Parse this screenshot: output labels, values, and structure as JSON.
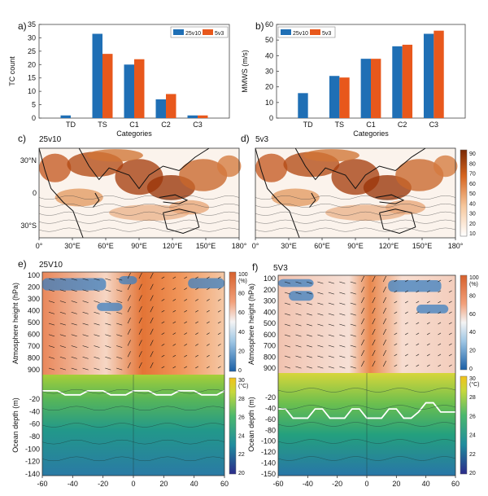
{
  "chart_data": [
    {
      "panel": "a)",
      "type": "bar",
      "categories": [
        "TD",
        "TS",
        "C1",
        "C2",
        "C3"
      ],
      "series": [
        {
          "name": "25v10",
          "values": [
            1,
            31.5,
            20,
            7,
            1
          ],
          "color": "#1f6fb5"
        },
        {
          "name": "5v3",
          "values": [
            0,
            24,
            22,
            9,
            1
          ],
          "color": "#e8581c"
        }
      ],
      "xlabel": "Categories",
      "ylabel": "TC count",
      "ylim": [
        0,
        35
      ],
      "yticks": [
        "0",
        "5",
        "10",
        "15",
        "20",
        "25",
        "30",
        "35"
      ],
      "legend": "top-right"
    },
    {
      "panel": "b)",
      "type": "bar",
      "categories": [
        "TD",
        "TS",
        "C1",
        "C2",
        "C3"
      ],
      "series": [
        {
          "name": "25v10",
          "values": [
            16,
            27,
            38,
            46,
            54
          ],
          "color": "#1f6fb5"
        },
        {
          "name": "5v3",
          "values": [
            0,
            26,
            38,
            47,
            56
          ],
          "color": "#e8581c"
        }
      ],
      "xlabel": "Categories",
      "ylabel": "MMWS (m/s)",
      "ylim": [
        0,
        60
      ],
      "yticks": [
        "0",
        "10",
        "20",
        "30",
        "40",
        "50",
        "60"
      ],
      "legend": "top-left"
    },
    {
      "panel": "c)",
      "type": "heatmap",
      "title": "25v10",
      "xticks": [
        "0°",
        "30°E",
        "60°E",
        "90°E",
        "120°E",
        "150°E",
        "180°"
      ],
      "yticks": [
        "30°N",
        "0",
        "30°S"
      ]
    },
    {
      "panel": "d)",
      "type": "heatmap",
      "title": "5v3",
      "xticks": [
        "0°",
        "30°E",
        "60°E",
        "90°E",
        "120°E",
        "150°E",
        "180°"
      ],
      "colorbar_ticks": [
        "90",
        "80",
        "70",
        "60",
        "50",
        "40",
        "30",
        "20",
        "10"
      ]
    },
    {
      "panel": "e)",
      "type": "heatmap",
      "title": "25V10",
      "ylabel_top": "Atmosphere height (hPa)",
      "ylabel_bottom": "Ocean depth (m)",
      "yticks_top": [
        "100",
        "200",
        "300",
        "400",
        "500",
        "600",
        "700",
        "800",
        "900"
      ],
      "yticks_bottom": [
        "-20",
        "-40",
        "-60",
        "-80",
        "-100",
        "-120",
        "-140"
      ],
      "xticks": [
        "-60",
        "-40",
        "-20",
        "0",
        "20",
        "40",
        "60"
      ],
      "colorbar_top": {
        "unit": "(%)",
        "ticks": [
          "100",
          "80",
          "60",
          "40",
          "20",
          "0"
        ]
      },
      "colorbar_bottom": {
        "unit": "(°C)",
        "ticks": [
          "30",
          "28",
          "26",
          "24",
          "22",
          "20"
        ]
      }
    },
    {
      "panel": "f)",
      "type": "heatmap",
      "title": "5V3",
      "ylabel_top": "Atmosphere height (hPa)",
      "ylabel_bottom": "Ocean depth (m)",
      "yticks_top": [
        "100",
        "200",
        "300",
        "400",
        "500",
        "600",
        "700",
        "800",
        "900"
      ],
      "yticks_bottom": [
        "-20",
        "-40",
        "-60",
        "-80",
        "-100",
        "-120",
        "-140",
        "-150"
      ],
      "xticks": [
        "-60",
        "-40",
        "-20",
        "0",
        "20",
        "40",
        "60"
      ],
      "colorbar_top": {
        "unit": "(%)",
        "ticks": [
          "100",
          "80",
          "60",
          "40",
          "20",
          "0"
        ]
      },
      "colorbar_bottom": {
        "unit": "(°C)",
        "ticks": [
          "30",
          "28",
          "26",
          "24",
          "22",
          "20"
        ]
      }
    }
  ]
}
